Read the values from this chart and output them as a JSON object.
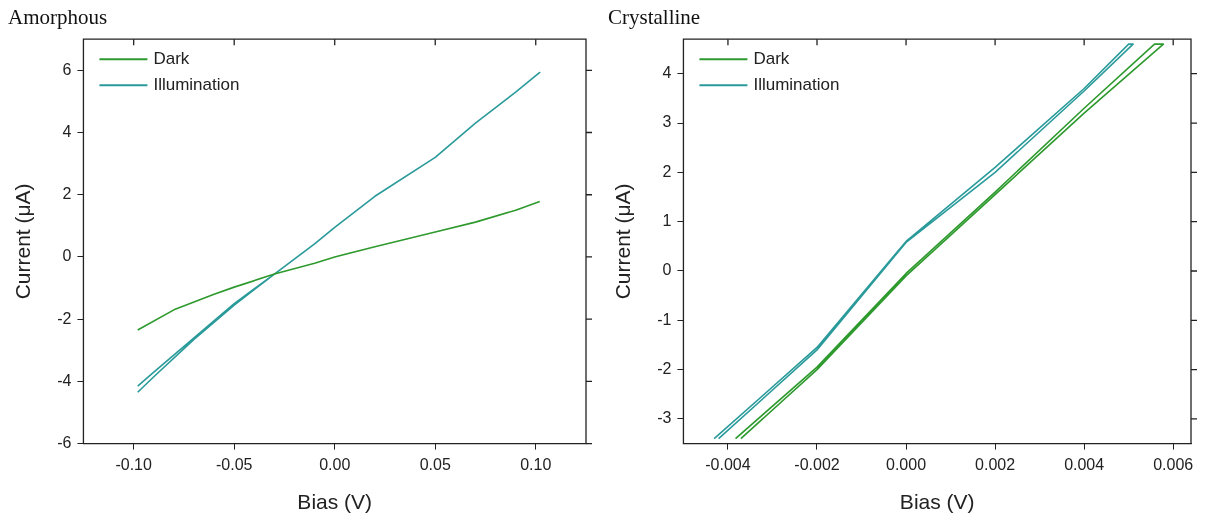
{
  "chart_data": [
    {
      "type": "line",
      "title": "Amorphous",
      "xlabel": "Bias (V)",
      "ylabel": "Current (μA)",
      "xlim": [
        -0.125,
        0.125
      ],
      "xticks": [
        {
          "value": -0.1,
          "label": "-0.10"
        },
        {
          "value": -0.05,
          "label": "-0.05"
        },
        {
          "value": 0,
          "label": "0.00"
        },
        {
          "value": 0.05,
          "label": "0.05"
        },
        {
          "value": 0.1,
          "label": "0.10"
        }
      ],
      "ylim": [
        -6,
        7
      ],
      "yticks": [
        -6,
        -4,
        -2,
        0,
        2,
        4,
        6
      ],
      "legend": "top left",
      "grid": false,
      "marker": "none",
      "line_style": "solid",
      "series": [
        {
          "name": "Dark",
          "color": "#2e9a2e",
          "x": [
            -0.098,
            -0.08,
            -0.06,
            -0.05,
            -0.03,
            -0.01,
            0,
            0.02,
            0.05,
            0.07,
            0.09,
            0.102
          ],
          "values": [
            -2.35,
            -1.7,
            -1.2,
            -0.97,
            -0.55,
            -0.2,
            0,
            0.33,
            0.8,
            1.12,
            1.5,
            1.78
          ]
        },
        {
          "name": "Illumination",
          "color": "#2a9a9a",
          "x": [
            -0.098,
            -0.09,
            -0.07,
            -0.05,
            -0.03,
            -0.01,
            0,
            0.02,
            0.05,
            0.07,
            0.09,
            0.102,
            0.09,
            0.07,
            0.05,
            0.02,
            0,
            -0.01,
            -0.03,
            -0.05,
            -0.07,
            -0.09,
            -0.098
          ],
          "values": [
            -4.35,
            -3.85,
            -2.65,
            -1.55,
            -0.55,
            0.42,
            0.95,
            1.95,
            3.2,
            4.3,
            5.3,
            5.93,
            5.3,
            4.3,
            3.2,
            1.95,
            0.95,
            0.42,
            -0.55,
            -1.5,
            -2.6,
            -3.7,
            -4.15
          ]
        }
      ]
    },
    {
      "type": "line",
      "title": "Crystalline",
      "xlabel": "Bias (V)",
      "ylabel": "Current (μA)",
      "xlim": [
        -0.005,
        0.0064
      ],
      "xticks": [
        -0.004,
        -0.002,
        {
          "value": 0,
          "label": "0.000"
        },
        0.002,
        0.004,
        0.006
      ],
      "ylim": [
        -3.5,
        4.7
      ],
      "yticks": [
        -3,
        -2,
        -1,
        0,
        1,
        2,
        3,
        4
      ],
      "legend": "top left",
      "grid": false,
      "marker": "none",
      "line_style": "solid",
      "series": [
        {
          "name": "Dark",
          "color": "#2e9a2e",
          "x": [
            -0.00383,
            -0.002,
            0,
            0.002,
            0.004,
            0.00558,
            0.00578,
            0.004,
            0.002,
            0,
            -0.002,
            -0.00371
          ],
          "values": [
            -3.4,
            -1.95,
            -0.05,
            1.6,
            3.3,
            4.6,
            4.6,
            3.2,
            1.55,
            -0.1,
            -2.0,
            -3.4
          ]
        },
        {
          "name": "Illumination",
          "color": "#2a9a9a",
          "x": [
            -0.00431,
            -0.002,
            0,
            0.002,
            0.004,
            0.005,
            0.0051,
            0.004,
            0.002,
            0,
            -0.002,
            -0.00421
          ],
          "values": [
            -3.4,
            -1.55,
            0.6,
            2.1,
            3.7,
            4.6,
            4.6,
            3.65,
            2.0,
            0.58,
            -1.6,
            -3.4
          ]
        }
      ]
    }
  ]
}
